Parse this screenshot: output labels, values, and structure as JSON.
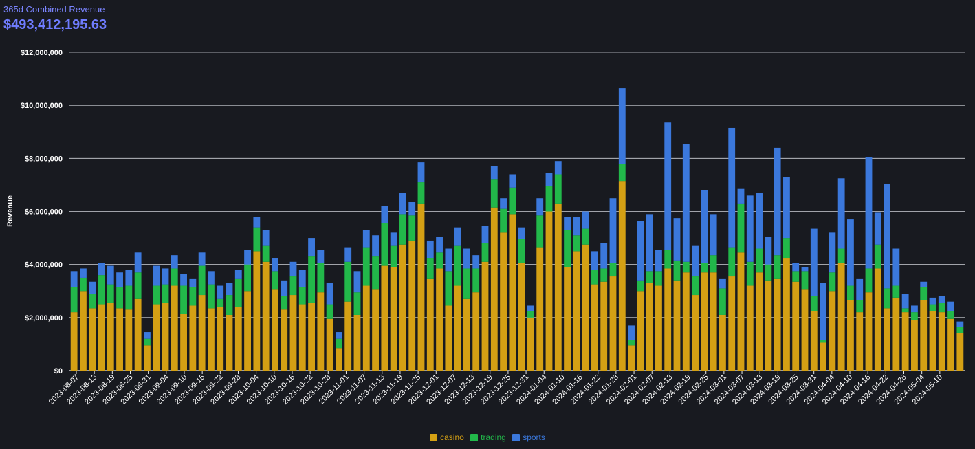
{
  "header": {
    "subtitle": "365d Combined Revenue",
    "total": "$493,412,195.63"
  },
  "colors": {
    "background": "#181a20",
    "grid": "#cfd2d8",
    "tick_text": "#ffffff",
    "title_accent": "#6f7cff",
    "casino": "#d4a014",
    "trading": "#22b84a",
    "sports": "#3b78dc"
  },
  "chart_data": {
    "type": "bar",
    "stacked": true,
    "title": "365d Combined Revenue",
    "xlabel": "",
    "ylabel": "Revenue",
    "ylim": [
      0,
      12000000
    ],
    "yticks": [
      0,
      2000000,
      4000000,
      6000000,
      8000000,
      10000000,
      12000000
    ],
    "ytick_labels": [
      "$0",
      "$2,000,000",
      "$4,000,000",
      "$6,000,000",
      "$8,000,000",
      "$10,000,000",
      "$12,000,000"
    ],
    "xtick_labels": [
      "2023-08-07",
      "2023-08-13",
      "2023-08-19",
      "2023-08-25",
      "2023-08-31",
      "2023-09-04",
      "2023-09-10",
      "2023-09-16",
      "2023-09-22",
      "2023-09-28",
      "2023-10-04",
      "2023-10-10",
      "2023-10-16",
      "2023-10-22",
      "2023-10-28",
      "2023-11-01",
      "2023-11-07",
      "2023-11-13",
      "2023-11-19",
      "2023-11-25",
      "2023-12-01",
      "2023-12-07",
      "2023-12-13",
      "2023-12-19",
      "2023-12-25",
      "2023-12-31",
      "2024-01-04",
      "2024-01-10",
      "2024-01-16",
      "2024-01-22",
      "2024-01-28",
      "2024-02-01",
      "2024-02-07",
      "2024-02-13",
      "2024-02-19",
      "2024-02-25",
      "2024-03-01",
      "2024-03-07",
      "2024-03-13",
      "2024-03-19",
      "2024-03-25",
      "2024-03-31",
      "2024-04-04",
      "2024-04-10",
      "2024-04-16",
      "2024-04-22",
      "2024-04-28",
      "2024-05-04",
      "2024-05-10"
    ],
    "grid": true,
    "legend_position": "bottom-center",
    "series": [
      {
        "name": "casino",
        "values": [
          2200000,
          3000000,
          2350000,
          2500000,
          2550000,
          2350000,
          2300000,
          2700000,
          950000,
          2500000,
          2550000,
          3200000,
          2150000,
          2450000,
          2850000,
          2350000,
          2400000,
          2100000,
          2400000,
          3000000,
          4500000,
          4100000,
          3050000,
          2300000,
          2850000,
          2500000,
          2550000,
          2950000,
          1950000,
          850000,
          2600000,
          2100000,
          3200000,
          3050000,
          3950000,
          3900000,
          4750000,
          4900000,
          6300000,
          3450000,
          3850000,
          2450000,
          3200000,
          2700000,
          2950000,
          4100000,
          6150000,
          5200000,
          5900000,
          4050000,
          2000000,
          4650000,
          6000000,
          6300000,
          3900000,
          4500000,
          4750000,
          3250000,
          3350000,
          3550000,
          7150000,
          950000,
          3000000,
          3300000,
          3200000,
          3850000,
          3400000,
          3700000,
          2850000,
          3700000,
          3700000,
          2100000,
          3550000,
          4450000,
          3200000,
          3700000,
          3400000,
          3450000,
          4250000,
          3350000,
          3050000,
          2250000,
          1050000,
          3000000,
          4050000,
          2650000,
          2200000,
          2950000,
          3850000,
          2350000,
          2750000,
          2200000,
          1900000,
          2650000,
          2250000,
          2200000,
          1950000,
          1400000
        ]
      },
      {
        "name": "trading",
        "values": [
          950000,
          500000,
          550000,
          1100000,
          700000,
          800000,
          900000,
          1000000,
          250000,
          700000,
          700000,
          650000,
          1050000,
          700000,
          1100000,
          900000,
          300000,
          750000,
          1050000,
          1000000,
          900000,
          600000,
          700000,
          500000,
          700000,
          650000,
          1750000,
          1100000,
          550000,
          350000,
          1500000,
          850000,
          1450000,
          1250000,
          1600000,
          800000,
          1150000,
          950000,
          800000,
          800000,
          600000,
          1300000,
          1500000,
          1150000,
          900000,
          700000,
          1050000,
          900000,
          1000000,
          900000,
          250000,
          1200000,
          950000,
          1100000,
          1400000,
          600000,
          600000,
          550000,
          500000,
          500000,
          650000,
          200000,
          400000,
          450000,
          550000,
          700000,
          750000,
          400000,
          700000,
          350000,
          650000,
          1000000,
          1100000,
          1850000,
          900000,
          900000,
          600000,
          900000,
          750000,
          400000,
          700000,
          550000,
          100000,
          700000,
          550000,
          550000,
          450000,
          900000,
          900000,
          750000,
          450000,
          150000,
          300000,
          500000,
          250000,
          350000,
          300000,
          250000
        ]
      },
      {
        "name": "sports",
        "values": [
          600000,
          350000,
          450000,
          450000,
          700000,
          550000,
          600000,
          750000,
          250000,
          750000,
          600000,
          500000,
          450000,
          300000,
          500000,
          500000,
          500000,
          450000,
          350000,
          550000,
          400000,
          600000,
          500000,
          600000,
          550000,
          650000,
          700000,
          500000,
          800000,
          250000,
          550000,
          800000,
          650000,
          800000,
          650000,
          500000,
          800000,
          500000,
          750000,
          650000,
          600000,
          850000,
          700000,
          750000,
          500000,
          650000,
          500000,
          400000,
          500000,
          450000,
          200000,
          650000,
          500000,
          500000,
          500000,
          700000,
          650000,
          700000,
          950000,
          2450000,
          2850000,
          550000,
          2250000,
          2150000,
          800000,
          4800000,
          1600000,
          4450000,
          1150000,
          2750000,
          1550000,
          350000,
          4500000,
          550000,
          2500000,
          2100000,
          1050000,
          4050000,
          2300000,
          300000,
          150000,
          2550000,
          2150000,
          1500000,
          2650000,
          2500000,
          800000,
          4200000,
          1200000,
          3950000,
          1400000,
          550000,
          250000,
          200000,
          250000,
          250000,
          350000,
          200000
        ]
      }
    ]
  },
  "legend": {
    "items": [
      {
        "label": "casino",
        "color": "#d4a014"
      },
      {
        "label": "trading",
        "color": "#22b84a"
      },
      {
        "label": "sports",
        "color": "#3b78dc"
      }
    ]
  }
}
